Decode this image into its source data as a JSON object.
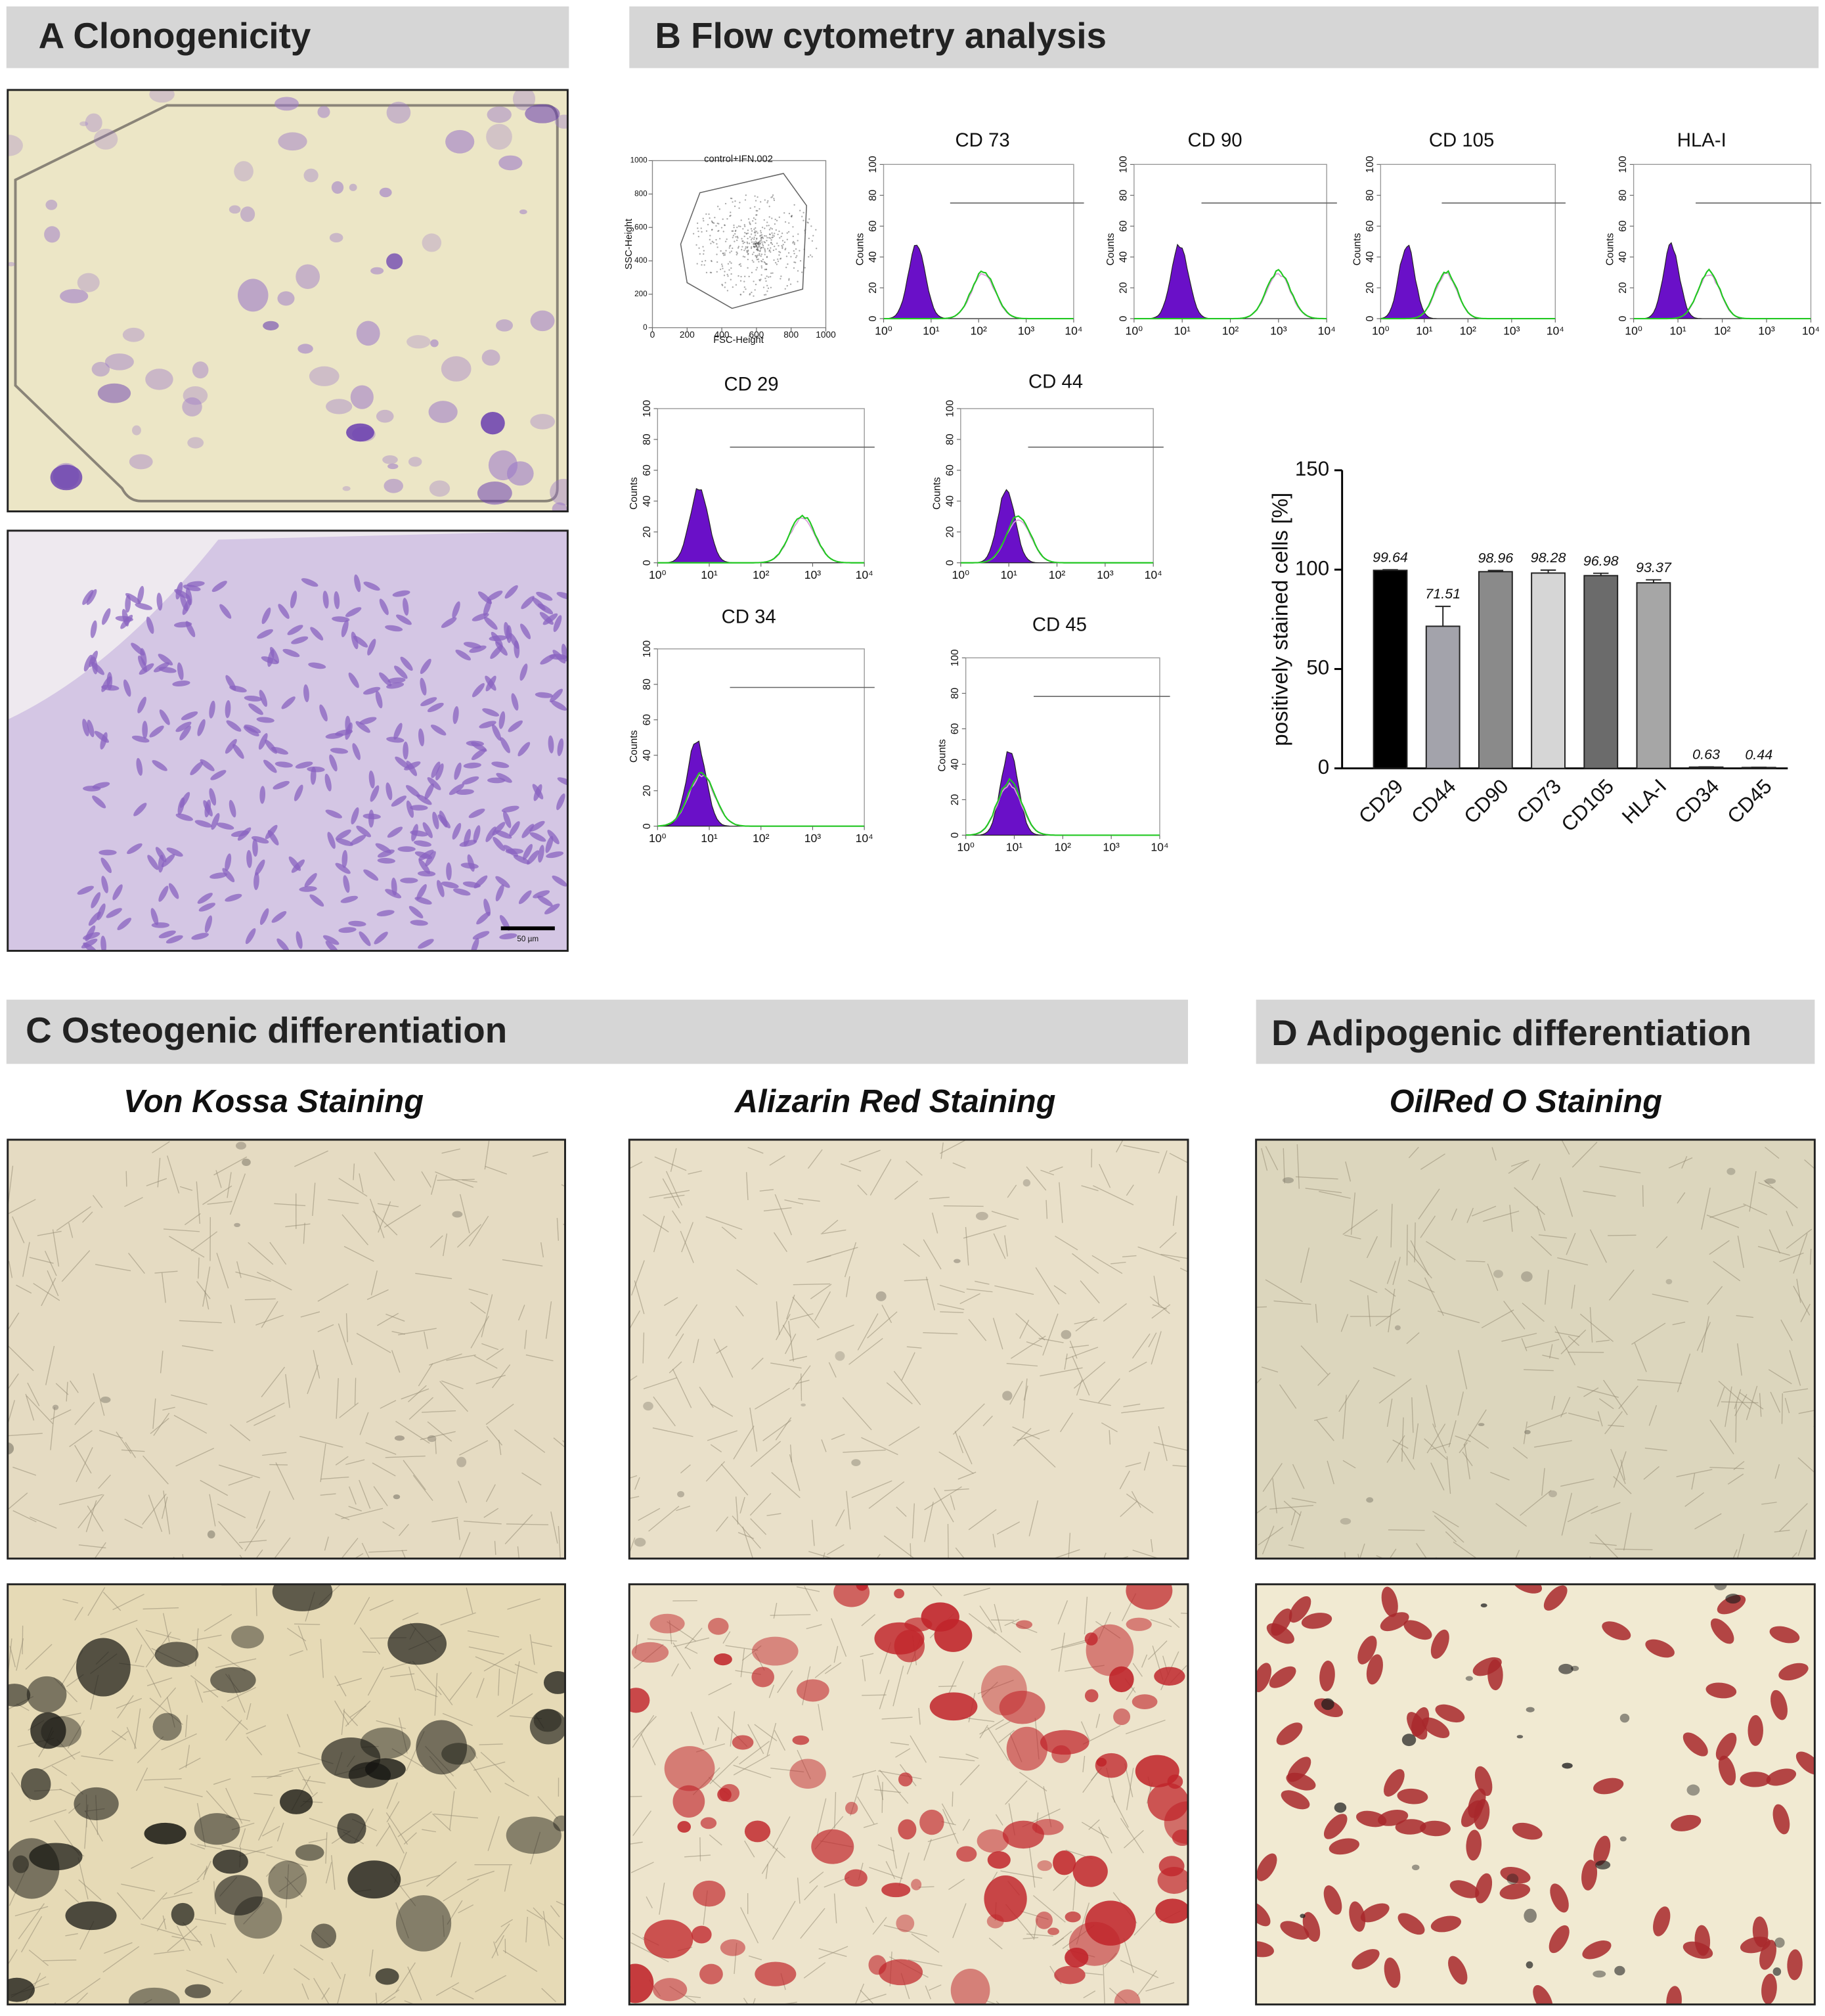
{
  "panels": {
    "a": {
      "title": "A Clonogenicity",
      "scale_bar": "50 µm"
    },
    "b": {
      "title": "B Flow cytometry analysis"
    },
    "c": {
      "title": "C  Osteogenic differentiation",
      "stains": [
        "Von Kossa Staining",
        "Alizarin Red Staining"
      ]
    },
    "d": {
      "title": "D Adipogenic differentiation",
      "stains": [
        "OilRed O Staining"
      ]
    }
  },
  "flow": {
    "scatter": {
      "label": "control+IFN.002",
      "x_label": "FSC-Height",
      "y_label": "SSC-Height",
      "xlim": [
        0,
        1000
      ],
      "ylim": [
        0,
        1000
      ],
      "xticks": [
        0,
        200,
        400,
        600,
        800,
        1000
      ],
      "yticks": [
        0,
        200,
        400,
        600,
        800,
        1000
      ]
    },
    "histograms": {
      "titles": [
        "CD 73",
        "CD 90",
        "CD 105",
        "HLA-I",
        "CD 29",
        "CD 44",
        "CD 34",
        "CD 45"
      ],
      "y_label": "Counts",
      "ylim": [
        0,
        100
      ],
      "yticks": [
        0,
        20,
        40,
        60,
        80,
        100
      ],
      "log_x": true,
      "xlim": [
        1,
        10000
      ],
      "xticks": [
        {
          "value": 1,
          "label": "10⁰"
        },
        {
          "value": 10,
          "label": "10¹"
        },
        {
          "value": 100,
          "label": "10²"
        },
        {
          "value": 1000,
          "label": "10³"
        },
        {
          "value": 10000,
          "label": "10⁴"
        }
      ]
    }
  },
  "chart_data": {
    "type": "bar",
    "y_label": "positively stained cells [%]",
    "categories": [
      "CD29",
      "CD44",
      "CD90",
      "CD73",
      "CD105",
      "HLA-I",
      "CD34",
      "CD45"
    ],
    "values": [
      99.64,
      71.51,
      98.96,
      98.28,
      96.98,
      93.37,
      0.63,
      0.44
    ],
    "errors": [
      0.3,
      10,
      0.6,
      1.5,
      1.2,
      1.5,
      0.1,
      0.1
    ],
    "colors": [
      "#000000",
      "#a3a3ab",
      "#8a8a8a",
      "#d6d6d6",
      "#6b6b6b",
      "#a6a6a6",
      "#888888",
      "#888888"
    ],
    "ylim": [
      0,
      150
    ],
    "yticks": [
      0,
      50,
      100,
      150
    ]
  }
}
